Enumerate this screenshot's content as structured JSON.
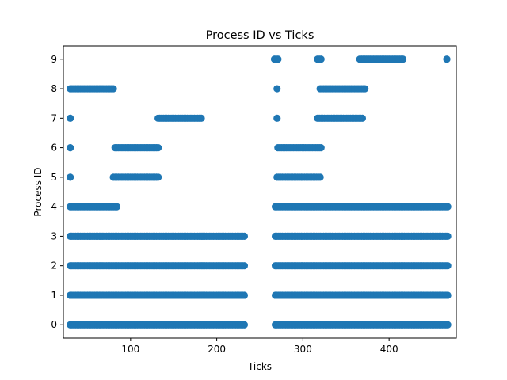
{
  "chart_data": {
    "type": "scatter",
    "title": "Process ID vs Ticks",
    "xlabel": "Ticks",
    "ylabel": "Process ID",
    "xlim": [
      22,
      478
    ],
    "ylim": [
      -0.45,
      9.45
    ],
    "xticks": [
      100,
      200,
      300,
      400
    ],
    "yticks": [
      0,
      1,
      2,
      3,
      4,
      5,
      6,
      7,
      8,
      9
    ],
    "grid": false,
    "marker_color": "#1f77b4",
    "series": [
      {
        "points_by_process": [
          {
            "process": 0,
            "ranges": [
              [
                30,
                233,
                2
              ],
              [
                268,
                468,
                2
              ]
            ]
          },
          {
            "process": 1,
            "ranges": [
              [
                30,
                233,
                2
              ],
              [
                268,
                468,
                2
              ]
            ]
          },
          {
            "process": 2,
            "ranges": [
              [
                30,
                233,
                2
              ],
              [
                268,
                468,
                2
              ]
            ]
          },
          {
            "process": 3,
            "ranges": [
              [
                30,
                233,
                2
              ],
              [
                268,
                468,
                2
              ]
            ]
          },
          {
            "process": 4,
            "ranges": [
              [
                30,
                84,
                2
              ],
              [
                268,
                468,
                2
              ]
            ]
          },
          {
            "process": 5,
            "ranges": [
              [
                30,
                30,
                1
              ],
              [
                80,
                132,
                2
              ],
              [
                270,
                320,
                2
              ]
            ]
          },
          {
            "process": 6,
            "ranges": [
              [
                30,
                30,
                1
              ],
              [
                82,
                132,
                2
              ],
              [
                271,
                322,
                2
              ]
            ]
          },
          {
            "process": 7,
            "ranges": [
              [
                30,
                30,
                1
              ],
              [
                132,
                182,
                2
              ],
              [
                270,
                270,
                1
              ],
              [
                317,
                370,
                2
              ]
            ]
          },
          {
            "process": 8,
            "ranges": [
              [
                30,
                80,
                2
              ],
              [
                270,
                270,
                1
              ],
              [
                320,
                372,
                2
              ]
            ]
          },
          {
            "process": 9,
            "ranges": [
              [
                267,
                272,
                2
              ],
              [
                317,
                322,
                2
              ],
              [
                366,
                416,
                2
              ],
              [
                467,
                467,
                1
              ]
            ]
          }
        ]
      }
    ]
  }
}
